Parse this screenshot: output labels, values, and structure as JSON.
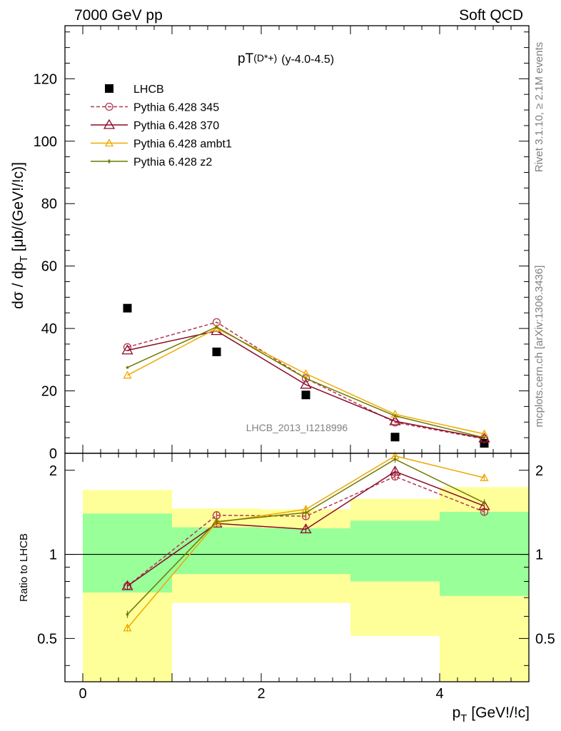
{
  "header": {
    "left": "7000 GeV pp",
    "right": "Soft QCD"
  },
  "plot_title": "pT",
  "plot_title_sub": "(D*+)",
  "plot_title_range": "(y-4.0-4.5)",
  "side_text_top": "Rivet 3.1.10, ≥ 2.1M events",
  "side_text_bottom": "mcplots.cern.ch [arXiv:1306.3436]",
  "watermark": "LHCB_2013_I1218996",
  "colors": {
    "data": "#000000",
    "p345": "#b03850",
    "p370": "#8b0a28",
    "ambt1": "#f0a800",
    "z2": "#6b7a00",
    "band_inner": "#99ff99",
    "band_outer": "#ffff99"
  },
  "chart_data": [
    {
      "type": "line",
      "ylabel": "dσ / dp_T [μb/(GeV!/!c)]",
      "xlim": [
        -0.2,
        5.0
      ],
      "ylim": [
        0,
        137
      ],
      "yticks": [
        0,
        20,
        40,
        60,
        80,
        100,
        120
      ],
      "legend_position": "top-left",
      "x": [
        0.5,
        1.5,
        2.5,
        3.5,
        4.5
      ],
      "series": [
        {
          "name": "LHCB",
          "marker": "square",
          "values": [
            46.5,
            32.5,
            18.7,
            5.2,
            3.2
          ]
        },
        {
          "name": "Pythia 6.428 345",
          "marker": "circle-open",
          "dashed": true,
          "values": [
            34.0,
            42.0,
            24.0,
            9.9,
            4.6
          ]
        },
        {
          "name": "Pythia 6.428 370",
          "marker": "triangle-open",
          "values": [
            33.0,
            39.2,
            22.0,
            10.3,
            4.8
          ]
        },
        {
          "name": "Pythia 6.428 ambt1",
          "marker": "triangle-open-small",
          "values": [
            25.0,
            40.0,
            25.5,
            12.5,
            6.2
          ]
        },
        {
          "name": "Pythia 6.428 z2",
          "marker": "dot",
          "values": [
            27.5,
            40.5,
            24.0,
            12.0,
            5.0
          ]
        }
      ]
    },
    {
      "type": "line",
      "ylabel": "Ratio to LHCB",
      "xlabel": "p_T [GeV!/!c]",
      "xlim": [
        -0.2,
        5.0
      ],
      "ylim": [
        0.35,
        2.3
      ],
      "yticks": [
        0.5,
        1,
        2
      ],
      "xticks": [
        0,
        2,
        4
      ],
      "bins": [
        [
          0,
          1
        ],
        [
          1,
          2
        ],
        [
          2,
          3
        ],
        [
          3,
          4
        ],
        [
          4,
          5
        ]
      ],
      "band_inner": [
        [
          0.73,
          1.4
        ],
        [
          0.85,
          1.25
        ],
        [
          0.85,
          1.24
        ],
        [
          0.8,
          1.32
        ],
        [
          0.71,
          1.42
        ]
      ],
      "band_outer": [
        [
          0.35,
          1.7
        ],
        [
          0.67,
          1.46
        ],
        [
          0.67,
          1.45
        ],
        [
          0.51,
          1.58
        ],
        [
          0.35,
          1.74
        ]
      ],
      "x": [
        0.5,
        1.5,
        2.5,
        3.5,
        4.5
      ],
      "series": [
        {
          "name": "Pythia 6.428 345",
          "values": [
            0.77,
            1.38,
            1.37,
            1.9,
            1.42
          ]
        },
        {
          "name": "Pythia 6.428 370",
          "values": [
            0.77,
            1.29,
            1.23,
            1.98,
            1.49
          ]
        },
        {
          "name": "Pythia 6.428 ambt1",
          "values": [
            0.545,
            1.3,
            1.45,
            2.25,
            1.88
          ]
        },
        {
          "name": "Pythia 6.428 z2",
          "values": [
            0.61,
            1.31,
            1.41,
            2.19,
            1.53
          ]
        }
      ]
    }
  ]
}
